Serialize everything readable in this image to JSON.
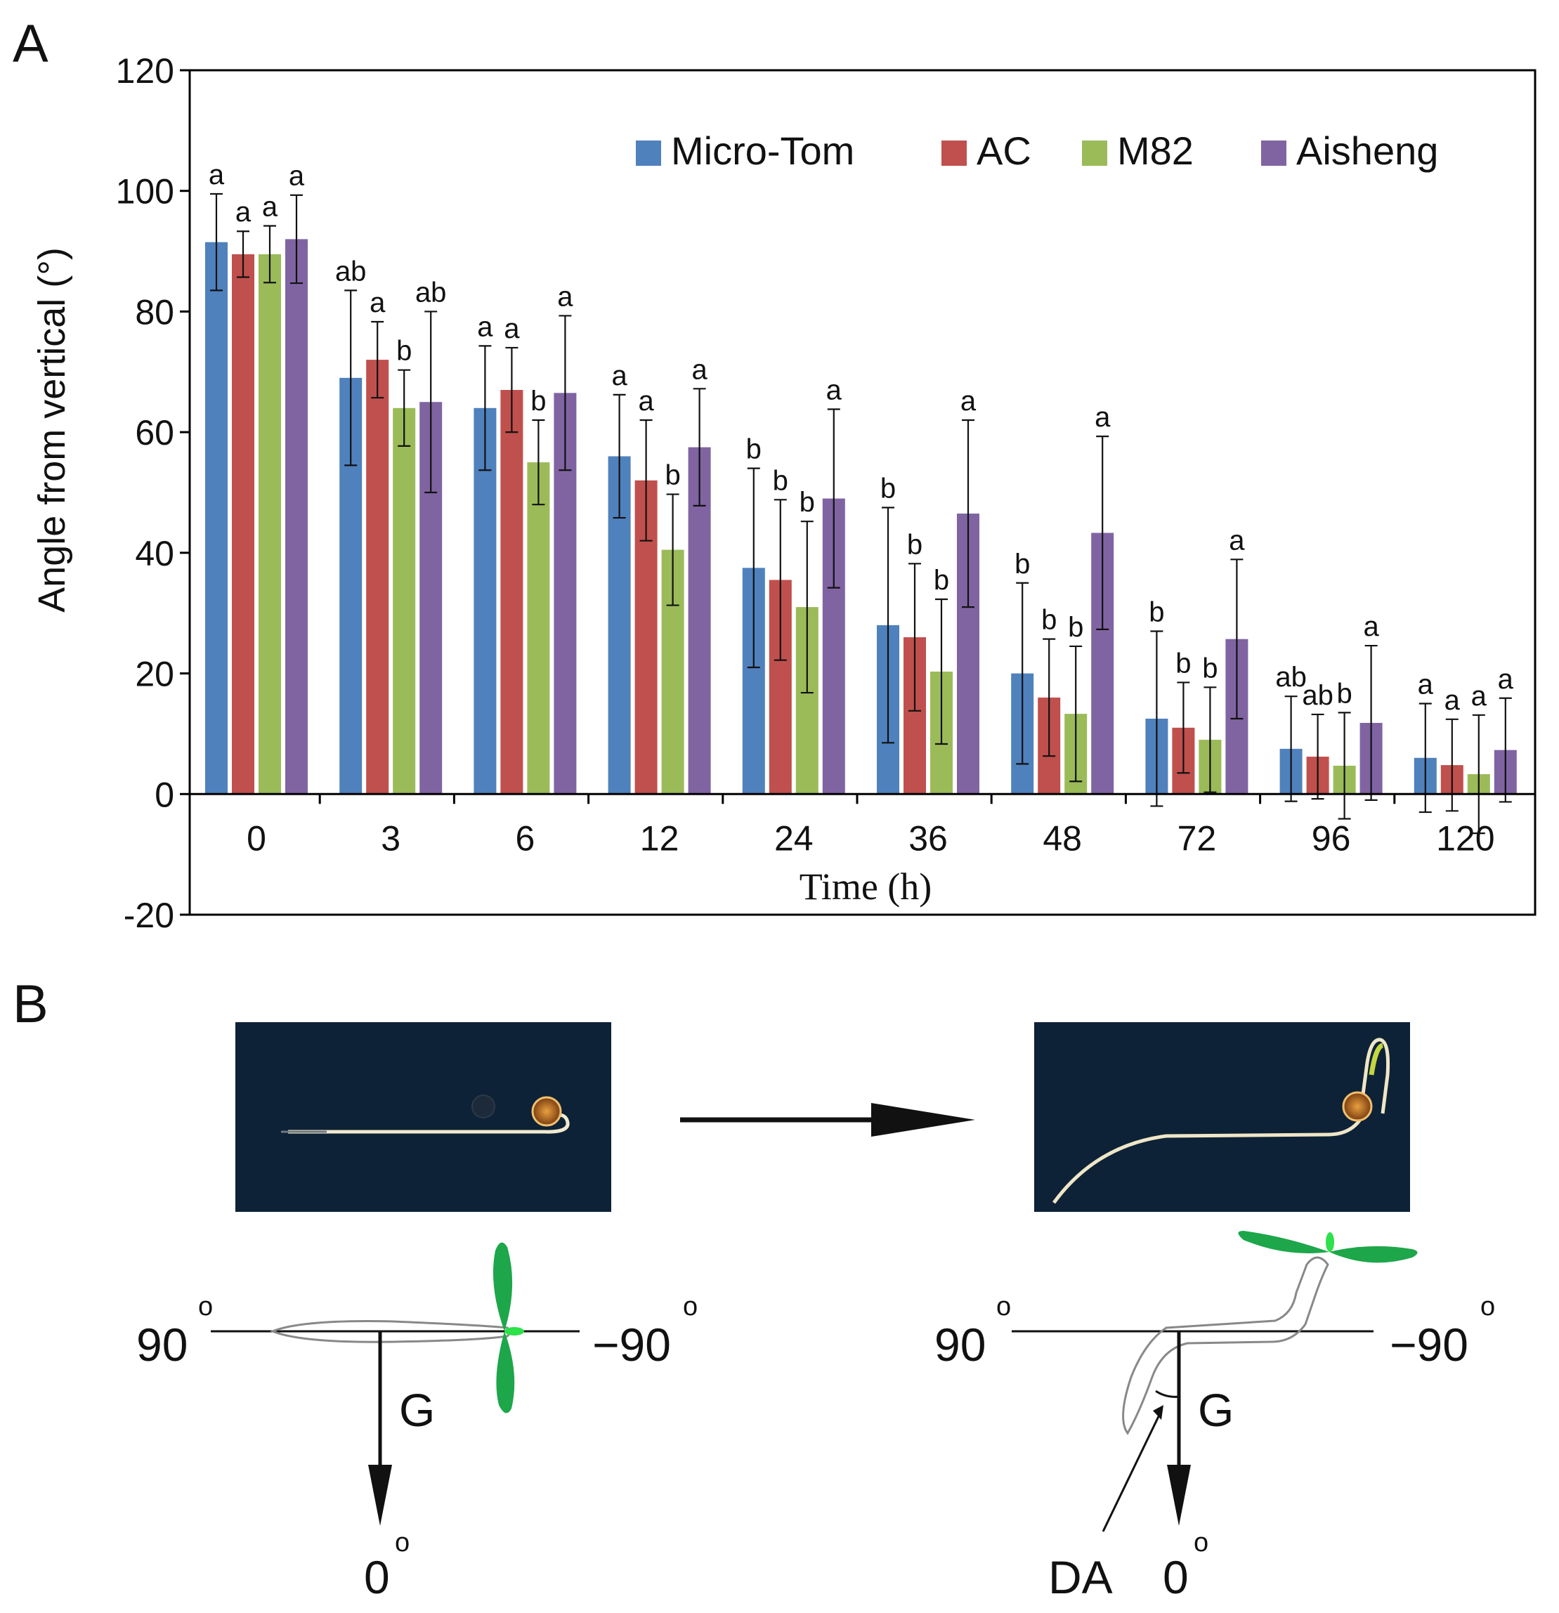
{
  "panel_labels": {
    "a": "A",
    "b": "B"
  },
  "chart_data": {
    "type": "bar",
    "xlabel": "Time (h)",
    "ylabel": "Angle from vertical (°)",
    "ylim": [
      -20,
      120
    ],
    "yticks": [
      -20,
      0,
      20,
      40,
      60,
      80,
      100,
      120
    ],
    "categories": [
      "0",
      "3",
      "6",
      "12",
      "24",
      "36",
      "48",
      "72",
      "96",
      "120"
    ],
    "legend_position": "top-right",
    "series": [
      {
        "name": "Micro-Tom",
        "color": "#4f81bd",
        "values": [
          91.5,
          69,
          64,
          56,
          37.5,
          28,
          20,
          12.5,
          7.5,
          6
        ],
        "errors": [
          8,
          14.5,
          10.3,
          10.2,
          16.5,
          19.5,
          15,
          14.5,
          8.7,
          9
        ],
        "letters": [
          "a",
          "ab",
          "a",
          "a",
          "b",
          "b",
          "b",
          "b",
          "ab",
          "a"
        ]
      },
      {
        "name": "AC",
        "color": "#c0504d",
        "values": [
          89.5,
          72,
          67,
          52,
          35.5,
          26,
          16,
          11,
          6.2,
          4.8
        ],
        "errors": [
          3.8,
          6.3,
          7,
          10,
          13.3,
          12.2,
          9.7,
          7.5,
          7,
          7.6
        ],
        "letters": [
          "a",
          "a",
          "a",
          "a",
          "b",
          "b",
          "b",
          "b",
          "ab",
          "a"
        ]
      },
      {
        "name": "M82",
        "color": "#9bbb59",
        "values": [
          89.5,
          64,
          55,
          40.5,
          31,
          20.3,
          13.3,
          9,
          4.7,
          3.3
        ],
        "errors": [
          4.7,
          6.3,
          7,
          9.2,
          14.2,
          12,
          11.2,
          8.7,
          8.8,
          9.8
        ],
        "letters": [
          "a",
          "b",
          "b",
          "b",
          "b",
          "b",
          "b",
          "b",
          "b",
          "a"
        ]
      },
      {
        "name": "Aisheng",
        "color": "#8064a2",
        "values": [
          92,
          65,
          66.5,
          57.5,
          49,
          46.5,
          43.3,
          25.7,
          11.8,
          7.3
        ],
        "errors": [
          7.3,
          15,
          12.8,
          9.7,
          14.8,
          15.5,
          16,
          13.2,
          12.8,
          8.6
        ],
        "letters": [
          "a",
          "ab",
          "a",
          "a",
          "a",
          "a",
          "a",
          "a",
          "a",
          "a"
        ]
      }
    ]
  },
  "diagram": {
    "left": {
      "label_90": "90",
      "label_neg90": "−90",
      "label_0": "0",
      "degree_mark": "o",
      "gravity_label": "G"
    },
    "right": {
      "label_90": "90",
      "label_neg90": "−90",
      "label_0": "0",
      "degree_mark": "o",
      "gravity_label": "G",
      "angle_label": "DA"
    },
    "photo_background": "#0d2236"
  }
}
